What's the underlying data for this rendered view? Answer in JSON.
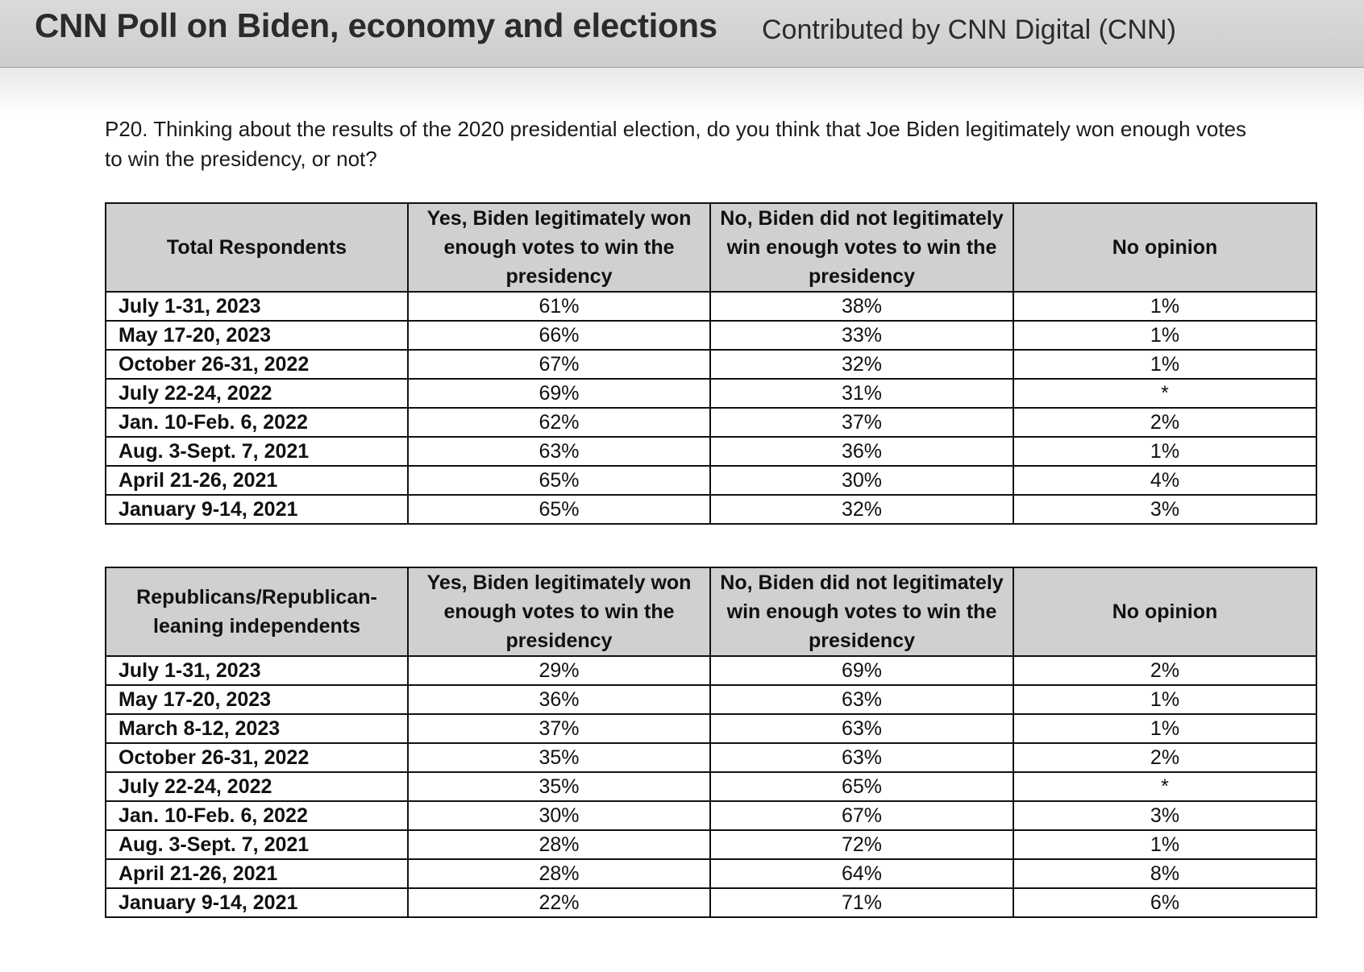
{
  "header": {
    "title": "CNN Poll on Biden, economy and elections",
    "contributor": "Contributed by CNN Digital (CNN)"
  },
  "question": "P20. Thinking about the results of the 2020 presidential election, do you think that Joe Biden legitimately won enough votes to win the presidency, or not?",
  "tables": [
    {
      "columns": [
        "Total Respondents",
        "Yes, Biden legitimately won enough votes to win the presidency",
        "No, Biden did not legitimately win enough votes to win the presidency",
        "No opinion"
      ],
      "rows": [
        [
          "July 1-31, 2023",
          "61%",
          "38%",
          "1%"
        ],
        [
          "May 17-20, 2023",
          "66%",
          "33%",
          "1%"
        ],
        [
          "October 26-31, 2022",
          "67%",
          "32%",
          "1%"
        ],
        [
          "July 22-24, 2022",
          "69%",
          "31%",
          "*"
        ],
        [
          "Jan. 10-Feb. 6, 2022",
          "62%",
          "37%",
          "2%"
        ],
        [
          "Aug. 3-Sept. 7, 2021",
          "63%",
          "36%",
          "1%"
        ],
        [
          "April 21-26, 2021",
          "65%",
          "30%",
          "4%"
        ],
        [
          "January 9-14, 2021",
          "65%",
          "32%",
          "3%"
        ]
      ]
    },
    {
      "columns": [
        "Republicans/Republican-leaning independents",
        "Yes, Biden legitimately won enough votes to win the presidency",
        "No, Biden did not legitimately win enough votes to win the presidency",
        "No opinion"
      ],
      "rows": [
        [
          "July 1-31, 2023",
          "29%",
          "69%",
          "2%"
        ],
        [
          "May 17-20, 2023",
          "36%",
          "63%",
          "1%"
        ],
        [
          "March 8-12, 2023",
          "37%",
          "63%",
          "1%"
        ],
        [
          "October 26-31, 2022",
          "35%",
          "63%",
          "2%"
        ],
        [
          "July 22-24, 2022",
          "35%",
          "65%",
          "*"
        ],
        [
          "Jan. 10-Feb. 6, 2022",
          "30%",
          "67%",
          "3%"
        ],
        [
          "Aug. 3-Sept. 7, 2021",
          "28%",
          "72%",
          "1%"
        ],
        [
          "April 21-26, 2021",
          "28%",
          "64%",
          "8%"
        ],
        [
          "January 9-14, 2021",
          "22%",
          "71%",
          "6%"
        ]
      ]
    }
  ]
}
